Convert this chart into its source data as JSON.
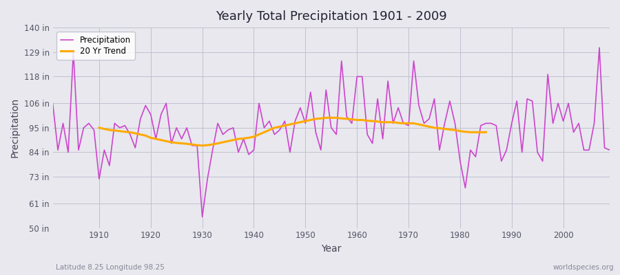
{
  "title": "Yearly Total Precipitation 1901 - 2009",
  "xlabel": "Year",
  "ylabel": "Precipitation",
  "subtitle_left": "Latitude 8.25 Longitude 98.25",
  "subtitle_right": "worldspecies.org",
  "fig_bg_color": "#e8e8ee",
  "plot_bg_color": "#e8e8ee",
  "precip_color": "#cc44cc",
  "trend_color": "#ffaa00",
  "ylim": [
    50,
    140
  ],
  "yticks": [
    50,
    61,
    73,
    84,
    95,
    106,
    118,
    129,
    140
  ],
  "ytick_labels": [
    "50 in",
    "61 in",
    "73 in",
    "84 in",
    "95 in",
    "106 in",
    "118 in",
    "129 in",
    "140 in"
  ],
  "xlim": [
    1901,
    2009
  ],
  "xticks": [
    1910,
    1920,
    1930,
    1940,
    1950,
    1960,
    1970,
    1980,
    1990,
    2000
  ],
  "years": [
    1901,
    1902,
    1903,
    1904,
    1905,
    1906,
    1907,
    1908,
    1909,
    1910,
    1911,
    1912,
    1913,
    1914,
    1915,
    1916,
    1917,
    1918,
    1919,
    1920,
    1921,
    1922,
    1923,
    1924,
    1925,
    1926,
    1927,
    1928,
    1929,
    1930,
    1931,
    1932,
    1933,
    1934,
    1935,
    1936,
    1937,
    1938,
    1939,
    1940,
    1941,
    1942,
    1943,
    1944,
    1945,
    1946,
    1947,
    1948,
    1949,
    1950,
    1951,
    1952,
    1953,
    1954,
    1955,
    1956,
    1957,
    1958,
    1959,
    1960,
    1961,
    1962,
    1963,
    1964,
    1965,
    1966,
    1967,
    1968,
    1969,
    1970,
    1971,
    1972,
    1973,
    1974,
    1975,
    1976,
    1977,
    1978,
    1979,
    1980,
    1981,
    1982,
    1983,
    1984,
    1985,
    1986,
    1987,
    1988,
    1989,
    1990,
    1991,
    1992,
    1993,
    1994,
    1995,
    1996,
    1997,
    1998,
    1999,
    2000,
    2001,
    2002,
    2003,
    2004,
    2005,
    2006,
    2007,
    2008,
    2009
  ],
  "precip": [
    106,
    85,
    97,
    84,
    129,
    85,
    95,
    97,
    94,
    72,
    85,
    78,
    97,
    95,
    96,
    92,
    86,
    99,
    105,
    101,
    90,
    101,
    106,
    88,
    95,
    90,
    95,
    87,
    87,
    55,
    72,
    85,
    97,
    92,
    94,
    95,
    84,
    90,
    83,
    85,
    106,
    95,
    98,
    92,
    94,
    98,
    84,
    98,
    104,
    97,
    111,
    93,
    85,
    112,
    95,
    92,
    125,
    100,
    97,
    118,
    118,
    92,
    88,
    108,
    90,
    116,
    97,
    104,
    97,
    96,
    125,
    105,
    97,
    99,
    108,
    85,
    97,
    107,
    97,
    80,
    68,
    85,
    82,
    96,
    97,
    97,
    96,
    80,
    85,
    97,
    107,
    84,
    108,
    107,
    84,
    80,
    119,
    97,
    106,
    98,
    106,
    93,
    97,
    85,
    85,
    97,
    131,
    86,
    85
  ],
  "trend_years": [
    1910,
    1911,
    1912,
    1913,
    1914,
    1915,
    1916,
    1917,
    1918,
    1919,
    1920,
    1921,
    1922,
    1923,
    1924,
    1925,
    1926,
    1927,
    1928,
    1929,
    1930,
    1931,
    1932,
    1933,
    1934,
    1935,
    1936,
    1937,
    1938,
    1939,
    1940,
    1941,
    1942,
    1943,
    1944,
    1945,
    1946,
    1947,
    1948,
    1949,
    1950,
    1951,
    1952,
    1953,
    1954,
    1955,
    1956,
    1957,
    1958,
    1959,
    1960,
    1961,
    1962,
    1963,
    1964,
    1965,
    1966,
    1967,
    1968,
    1969,
    1970,
    1971,
    1972,
    1973,
    1974,
    1975,
    1976,
    1977,
    1978,
    1979,
    1980,
    1981,
    1982,
    1983,
    1984,
    1985
  ],
  "trend_vals": [
    95.0,
    94.5,
    94.0,
    93.8,
    93.5,
    93.2,
    93.0,
    92.5,
    92.0,
    91.5,
    90.5,
    90.0,
    89.5,
    89.0,
    88.5,
    88.2,
    88.0,
    87.8,
    87.5,
    87.2,
    87.0,
    87.2,
    87.5,
    88.0,
    88.5,
    89.0,
    89.5,
    90.0,
    90.2,
    90.5,
    91.0,
    92.0,
    93.0,
    94.0,
    95.0,
    95.5,
    96.0,
    96.5,
    97.0,
    97.5,
    98.0,
    98.5,
    99.0,
    99.2,
    99.5,
    99.5,
    99.5,
    99.2,
    99.0,
    98.8,
    98.5,
    98.5,
    98.2,
    98.0,
    97.8,
    97.5,
    97.5,
    97.5,
    97.2,
    97.0,
    97.0,
    97.0,
    96.5,
    96.0,
    95.5,
    95.0,
    94.8,
    94.5,
    94.2,
    94.0,
    93.5,
    93.2,
    93.0,
    93.0,
    93.0,
    93.0
  ]
}
